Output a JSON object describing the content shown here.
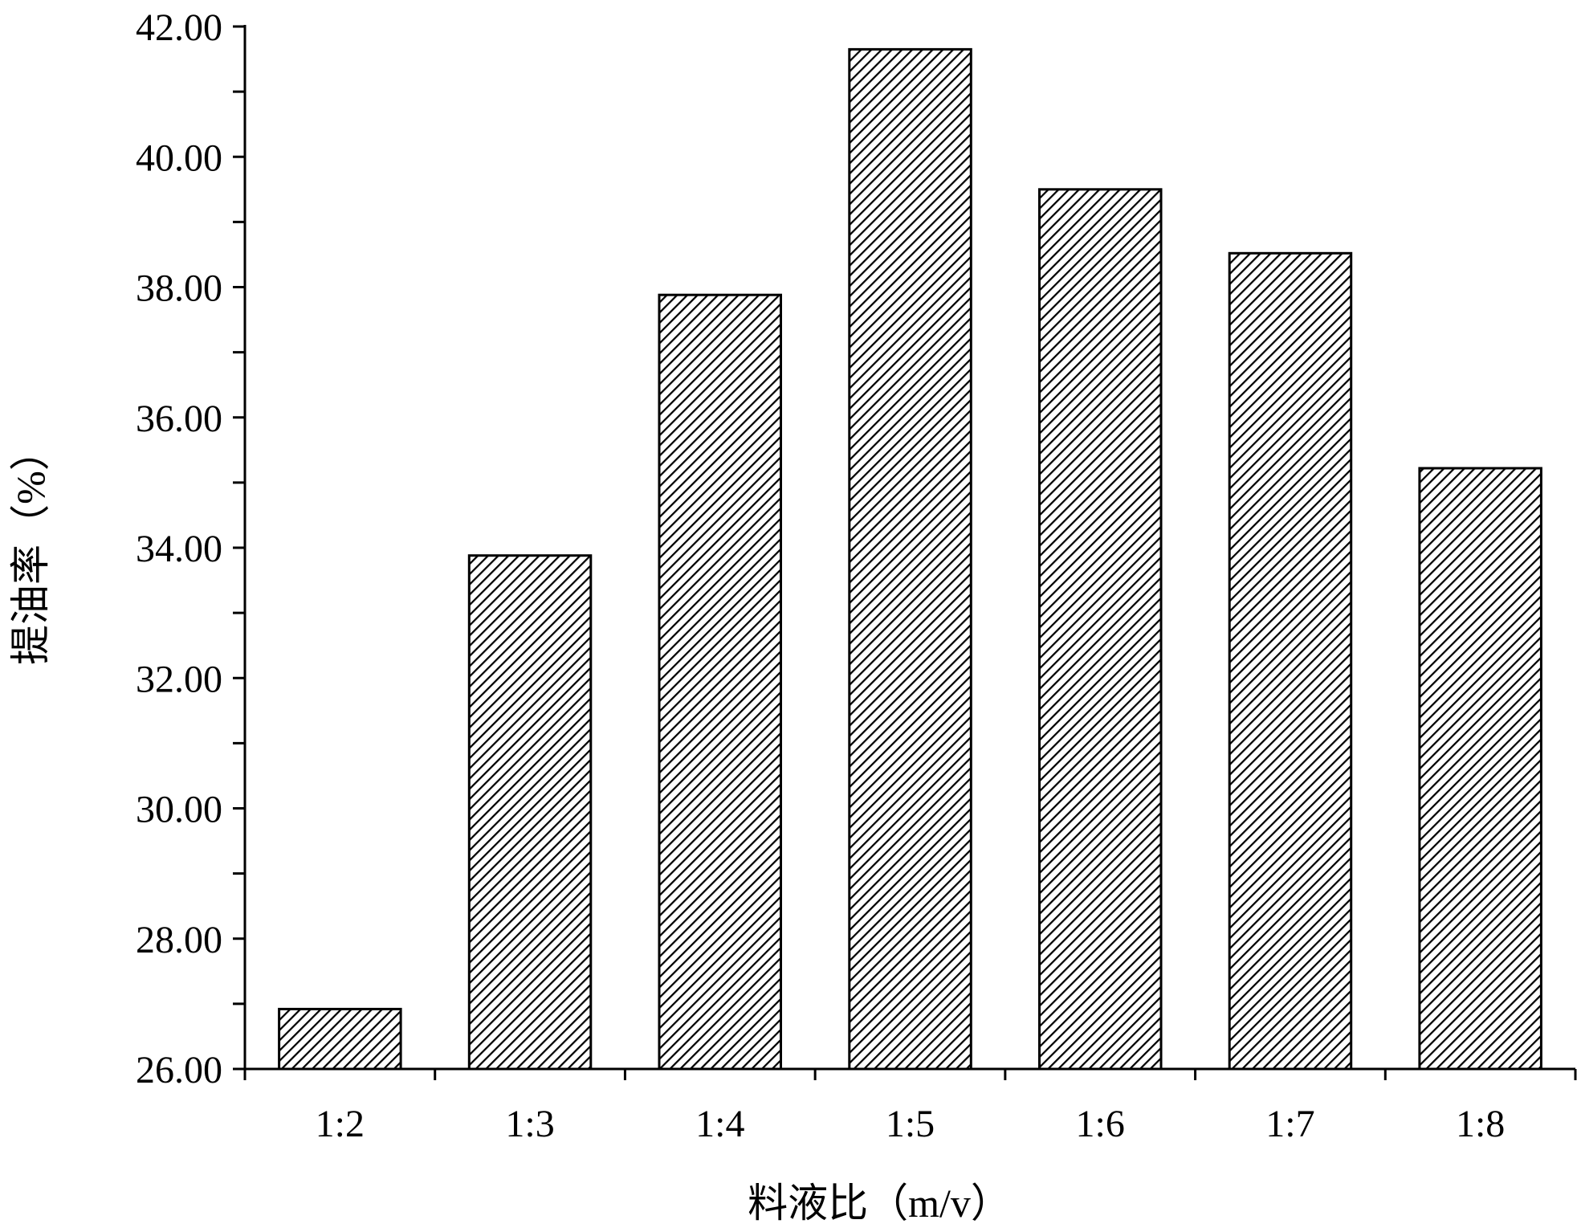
{
  "chart_data": {
    "type": "bar",
    "title": "",
    "xlabel": "料液比（m/v）",
    "ylabel": "提油率（%）",
    "categories": [
      "1:2",
      "1:3",
      "1:4",
      "1:5",
      "1:6",
      "1:7",
      "1:8"
    ],
    "values": [
      26.92,
      33.88,
      37.88,
      41.65,
      39.5,
      38.52,
      35.22
    ],
    "ylim": [
      26,
      42
    ],
    "yticks": [
      "26.00",
      "28.00",
      "30.00",
      "32.00",
      "34.00",
      "36.00",
      "38.00",
      "40.00",
      "42.00"
    ],
    "grid": false,
    "legend": "none",
    "bar_fill": "hatched",
    "colors": {
      "bar_stroke": "#000000",
      "hatch": "#000000",
      "background": "#ffffff"
    }
  }
}
